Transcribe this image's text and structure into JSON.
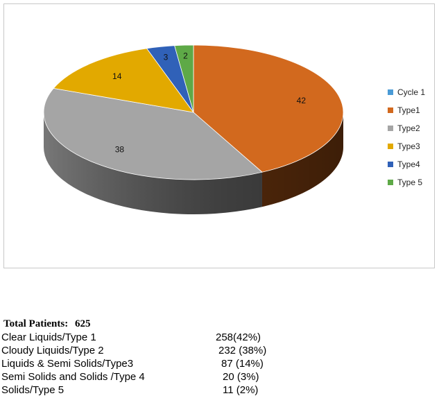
{
  "chart_data": {
    "type": "pie",
    "title": "",
    "legend_position": "right",
    "categories": [
      "Cycle 1",
      "Type1",
      "Type2",
      "Type3",
      "Type4",
      "Type 5"
    ],
    "values": [
      0,
      42,
      38,
      14,
      3,
      2
    ],
    "colors": [
      "#4a9bd6",
      "#d2691e",
      "#a5a5a5",
      "#e2a900",
      "#3061b8",
      "#5ea947"
    ],
    "side_colors": [
      "#2a6a9e",
      "#5e2e0c",
      "#4a4a4a",
      "#7a5c00",
      "#1a3470",
      "#2f6b25"
    ]
  },
  "summary": {
    "title_label": "Total Patients:",
    "title_value": "625",
    "rows": [
      {
        "label": "Clear Liquids/Type 1",
        "value": "258(42%)"
      },
      {
        "label": "Cloudy Liquids/Type 2",
        "value": "232 (38%)"
      },
      {
        "label": "Liquids & Semi Solids/Type3",
        "value": "87 (14%)"
      },
      {
        "label": "Semi Solids and Solids /Type 4",
        "value": "20 (3%)"
      },
      {
        "label": "Solids/Type 5",
        "value": "11 (2%)"
      }
    ]
  }
}
